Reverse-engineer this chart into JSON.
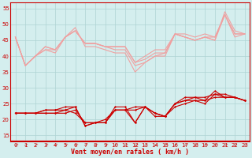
{
  "x": [
    0,
    1,
    2,
    3,
    4,
    5,
    6,
    7,
    8,
    9,
    10,
    11,
    12,
    13,
    14,
    15,
    16,
    17,
    18,
    19,
    20,
    21,
    22,
    23
  ],
  "rafales1": [
    46,
    37,
    40,
    42,
    41,
    46,
    49,
    43,
    43,
    42,
    41,
    41,
    35,
    38,
    40,
    40,
    47,
    46,
    45,
    46,
    45,
    54,
    48,
    47
  ],
  "rafales2": [
    46,
    37,
    40,
    42,
    42,
    46,
    48,
    44,
    44,
    43,
    42,
    42,
    37,
    38,
    40,
    41,
    47,
    46,
    45,
    46,
    45,
    53,
    46,
    47
  ],
  "rafales3": [
    46,
    37,
    40,
    43,
    42,
    46,
    48,
    44,
    44,
    43,
    43,
    43,
    38,
    39,
    41,
    41,
    47,
    46,
    45,
    46,
    46,
    53,
    47,
    47
  ],
  "rafales4": [
    46,
    37,
    40,
    43,
    42,
    46,
    48,
    44,
    44,
    43,
    43,
    43,
    38,
    40,
    42,
    42,
    47,
    47,
    46,
    47,
    46,
    53,
    47,
    47
  ],
  "vent1": [
    22,
    22,
    22,
    22,
    22,
    23,
    22,
    19,
    19,
    19,
    23,
    23,
    23,
    24,
    22,
    21,
    25,
    27,
    27,
    26,
    29,
    27,
    27,
    26
  ],
  "vent2": [
    22,
    22,
    22,
    22,
    22,
    22,
    23,
    19,
    19,
    20,
    23,
    23,
    24,
    24,
    21,
    21,
    24,
    25,
    26,
    25,
    28,
    27,
    27,
    26
  ],
  "vent3": [
    22,
    22,
    22,
    23,
    23,
    23,
    24,
    18,
    19,
    19,
    23,
    23,
    19,
    24,
    22,
    21,
    25,
    26,
    26,
    26,
    27,
    27,
    27,
    26
  ],
  "vent4": [
    22,
    22,
    22,
    23,
    23,
    24,
    24,
    18,
    19,
    19,
    24,
    24,
    19,
    24,
    22,
    21,
    25,
    26,
    27,
    27,
    28,
    28,
    27,
    26
  ],
  "bg_color": "#d4eeee",
  "grid_color": "#aed4d4",
  "line_color_light": "#f0a0a0",
  "line_color_dark": "#cc0000",
  "xlabel": "Vent moyen/en rafales ( km/h )",
  "ylim": [
    13,
    57
  ],
  "xlim": [
    -0.5,
    23.5
  ],
  "yticks": [
    15,
    20,
    25,
    30,
    35,
    40,
    45,
    50,
    55
  ],
  "xticks": [
    0,
    1,
    2,
    3,
    4,
    5,
    6,
    7,
    8,
    9,
    10,
    11,
    12,
    13,
    14,
    15,
    16,
    17,
    18,
    19,
    20,
    21,
    22,
    23
  ]
}
